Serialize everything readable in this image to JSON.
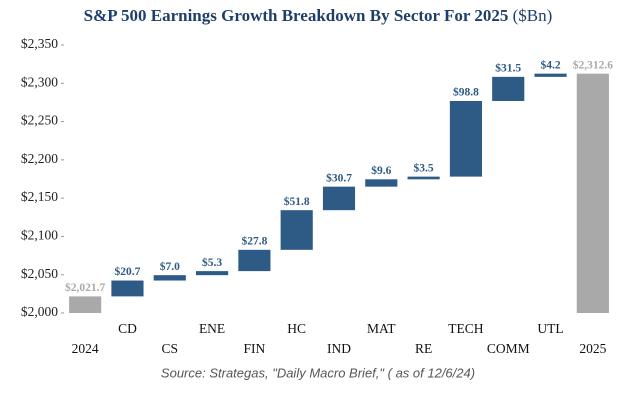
{
  "chart_data": {
    "type": "waterfall",
    "title": "S&P 500 Earnings Growth Breakdown By Sector For 2025",
    "title_unit": "($Bn)",
    "source": "Source: Strategas, \"Daily Macro Brief,\" ( as of 12/6/24)",
    "categories": [
      "2024",
      "CD",
      "CS",
      "ENE",
      "FIN",
      "HC",
      "IND",
      "MAT",
      "RE",
      "TECH",
      "COMM",
      "UTL",
      "2025"
    ],
    "values": [
      2021.7,
      20.7,
      7.0,
      5.3,
      27.8,
      51.8,
      30.7,
      9.6,
      3.5,
      98.8,
      31.5,
      4.2,
      2312.6
    ],
    "value_labels": [
      "$2,021.7",
      "$20.7",
      "$7.0",
      "$5.3",
      "$27.8",
      "$51.8",
      "$30.7",
      "$9.6",
      "$3.5",
      "$98.8",
      "$31.5",
      "$4.2",
      "$2,312.6"
    ],
    "color": "#2e5b85",
    "total_color": "#a9a9a9",
    "ylim": [
      2000,
      2350
    ],
    "yticks": [
      {
        "value": 2000,
        "label": "$2,000"
      },
      {
        "value": 2050,
        "label": "$2,050"
      },
      {
        "value": 2100,
        "label": "$2,100"
      },
      {
        "value": 2150,
        "label": "$2,150"
      },
      {
        "value": 2200,
        "label": "$2,200"
      },
      {
        "value": 2250,
        "label": "$2,250"
      },
      {
        "value": 2300,
        "label": "$2,300"
      },
      {
        "value": 2350,
        "label": "$2,350"
      }
    ]
  }
}
